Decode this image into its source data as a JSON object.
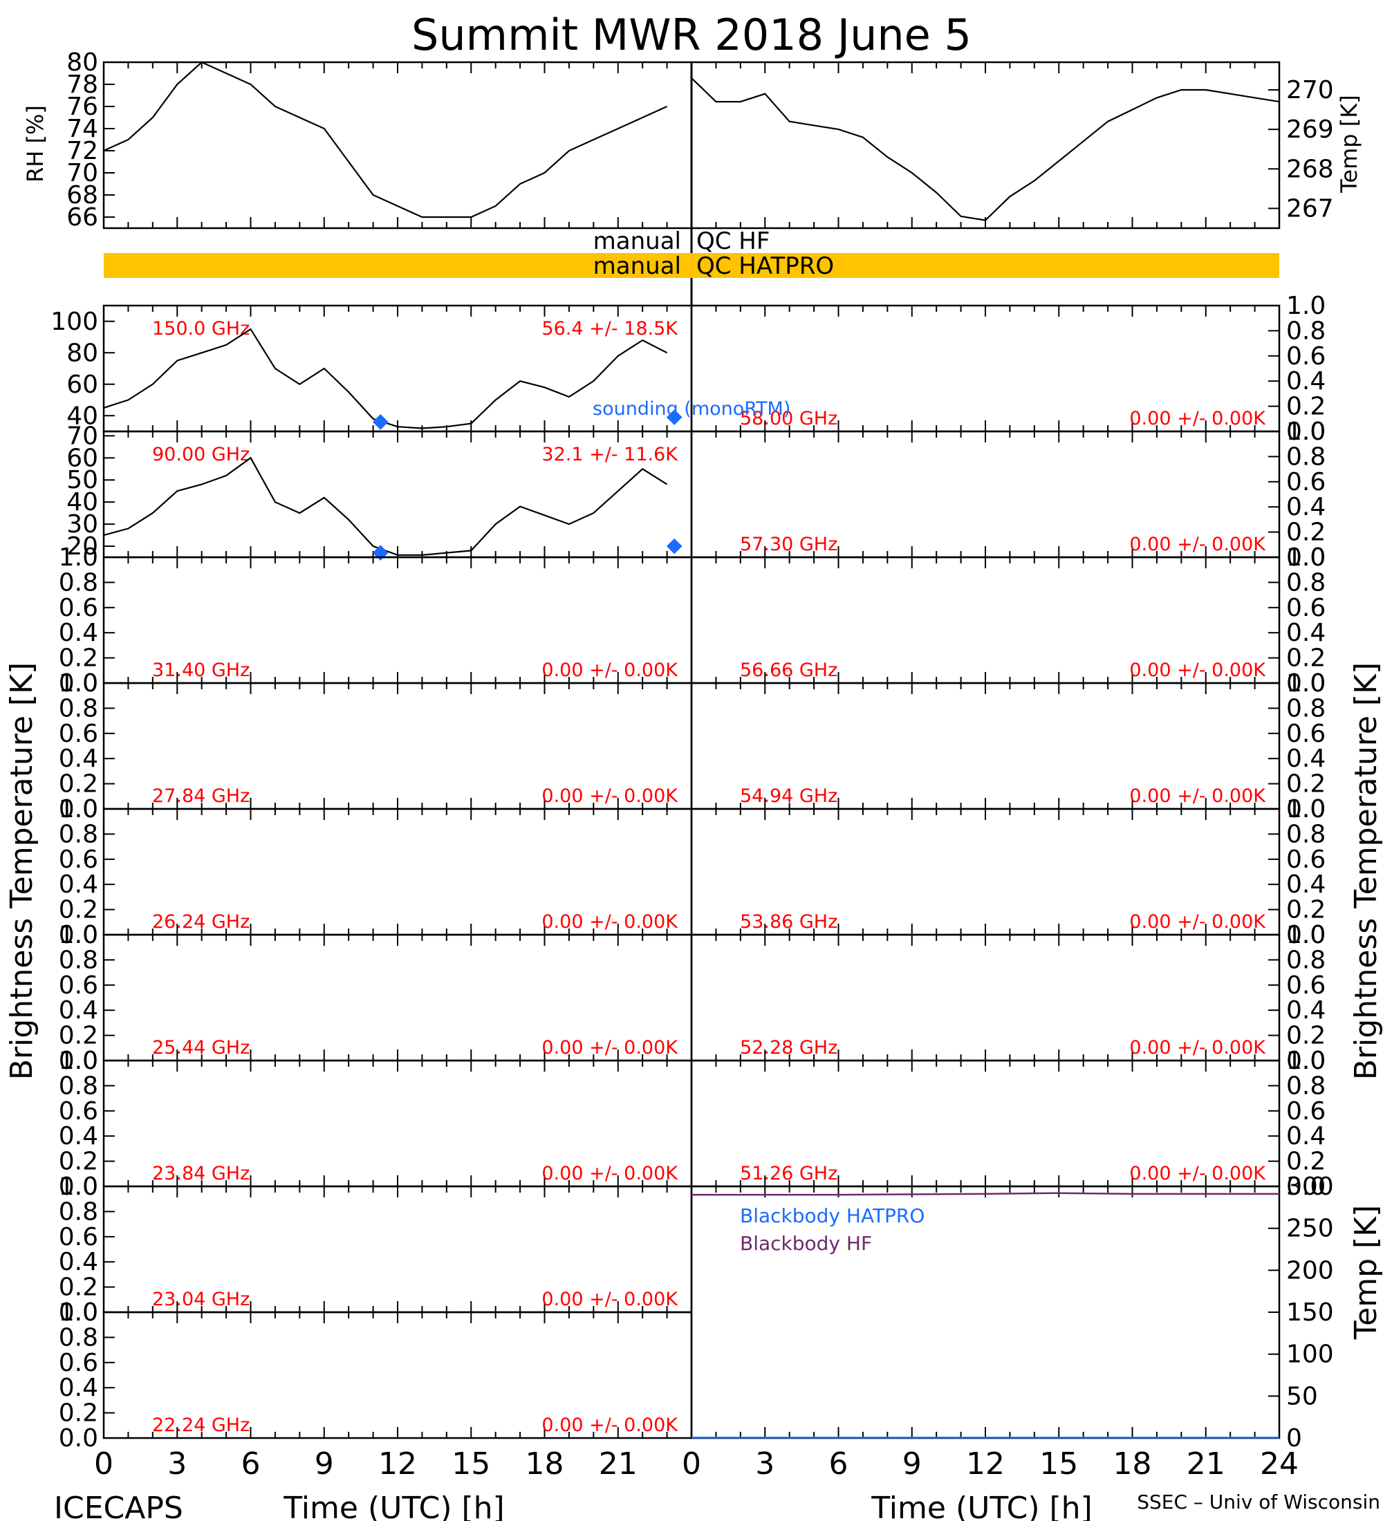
{
  "title": "Summit MWR 2018 June  5",
  "footer": {
    "left": "ICECAPS",
    "right": "SSEC – Univ of Wisconsin"
  },
  "colors": {
    "qc_bar": "#ffc300",
    "data": "#000000",
    "annotation": "#ff0000",
    "sounding": "#1a6bff",
    "bb_hatpro": "#1a6bff",
    "bb_hf": "#6b2a6b"
  },
  "time_axis": {
    "label": "Time (UTC) [h]",
    "ticks": [
      "0",
      "3",
      "6",
      "9",
      "12",
      "15",
      "18",
      "21",
      "24"
    ],
    "ticks_left": [
      "0",
      "3",
      "6",
      "9",
      "12",
      "15",
      "18",
      "21"
    ],
    "range": [
      0,
      24
    ]
  },
  "side_labels": {
    "bt_left": "Brightness Temperature [K]",
    "bt_right": "Brightness Temperature [K]",
    "bb_right": "Temp [K]"
  },
  "qc": {
    "row1": {
      "left": "manual",
      "right": "QC HF"
    },
    "row2": {
      "left": "manual",
      "right": "QC HATPRO"
    }
  },
  "chart_data": [
    {
      "id": "rh",
      "type": "line",
      "ylabel": "RH [%]",
      "ylim": [
        65,
        80
      ],
      "yticks": [
        "66",
        "68",
        "70",
        "72",
        "74",
        "76",
        "78",
        "80"
      ],
      "x": [
        0,
        1,
        2,
        3,
        4,
        5,
        6,
        7,
        8,
        9,
        10,
        11,
        12,
        13,
        14,
        15,
        16,
        17,
        18,
        19,
        20,
        21,
        22,
        23
      ],
      "values": [
        72,
        73,
        75,
        78,
        80,
        79,
        78,
        76,
        75,
        74,
        71,
        68,
        67,
        66,
        66,
        66,
        67,
        69,
        70,
        72,
        73,
        74,
        75,
        76
      ]
    },
    {
      "id": "temp",
      "type": "line",
      "ylabel": "Temp [K]",
      "ylim": [
        266.5,
        270.7
      ],
      "yticks": [
        "267",
        "268",
        "269",
        "270"
      ],
      "x": [
        0,
        1,
        2,
        3,
        4,
        5,
        6,
        7,
        8,
        9,
        10,
        11,
        12,
        13,
        14,
        15,
        16,
        17,
        18,
        19,
        20,
        21,
        22,
        23,
        24
      ],
      "values": [
        270.3,
        269.7,
        269.7,
        269.9,
        269.2,
        269.1,
        269.0,
        268.8,
        268.3,
        267.9,
        267.4,
        266.8,
        266.7,
        267.3,
        267.7,
        268.2,
        268.7,
        269.2,
        269.5,
        269.8,
        270.0,
        270.0,
        269.9,
        269.8,
        269.7
      ]
    },
    {
      "id": "150",
      "type": "line",
      "channel": "150.0 GHz",
      "stats": "56.4 +/-  18.5K",
      "ylim": [
        30,
        110
      ],
      "yticks": [
        "40",
        "60",
        "80",
        "100"
      ],
      "x": [
        0,
        1,
        2,
        3,
        4,
        5,
        6,
        7,
        8,
        9,
        10,
        11,
        12,
        13,
        14,
        15,
        16,
        17,
        18,
        19,
        20,
        21,
        22,
        23
      ],
      "values": [
        45,
        50,
        60,
        75,
        80,
        85,
        95,
        70,
        60,
        70,
        55,
        38,
        33,
        32,
        33,
        35,
        50,
        62,
        58,
        52,
        62,
        78,
        88,
        80
      ],
      "sounding": {
        "label": "sounding (monoRTM)",
        "x": [
          11.3,
          23.3
        ],
        "values": [
          36,
          39
        ]
      }
    },
    {
      "id": "90",
      "type": "line",
      "channel": "90.00 GHz",
      "stats": "32.1 +/-  11.6K",
      "ylim": [
        15,
        72
      ],
      "yticks": [
        "20",
        "30",
        "40",
        "50",
        "60",
        "70"
      ],
      "x": [
        0,
        1,
        2,
        3,
        4,
        5,
        6,
        7,
        8,
        9,
        10,
        11,
        12,
        13,
        14,
        15,
        16,
        17,
        18,
        19,
        20,
        21,
        22,
        23
      ],
      "values": [
        25,
        28,
        35,
        45,
        48,
        52,
        60,
        40,
        35,
        42,
        32,
        20,
        16,
        16,
        17,
        18,
        30,
        38,
        34,
        30,
        35,
        45,
        55,
        48
      ],
      "sounding": {
        "x": [
          11.3,
          23.3
        ],
        "values": [
          17,
          20
        ]
      }
    },
    {
      "id": "31",
      "channel": "31.40 GHz",
      "stats": "0.00 +/-  0.00K",
      "ylim": [
        0,
        1
      ],
      "yticks": [
        "0.0",
        "0.2",
        "0.4",
        "0.6",
        "0.8",
        "1.0"
      ]
    },
    {
      "id": "27",
      "channel": "27.84 GHz",
      "stats": "0.00 +/-  0.00K",
      "ylim": [
        0,
        1
      ],
      "yticks": [
        "0.0",
        "0.2",
        "0.4",
        "0.6",
        "0.8",
        "1.0"
      ]
    },
    {
      "id": "26",
      "channel": "26.24 GHz",
      "stats": "0.00 +/-  0.00K",
      "ylim": [
        0,
        1
      ],
      "yticks": [
        "0.0",
        "0.2",
        "0.4",
        "0.6",
        "0.8",
        "1.0"
      ]
    },
    {
      "id": "25",
      "channel": "25.44 GHz",
      "stats": "0.00 +/-  0.00K",
      "ylim": [
        0,
        1
      ],
      "yticks": [
        "0.0",
        "0.2",
        "0.4",
        "0.6",
        "0.8",
        "1.0"
      ]
    },
    {
      "id": "23a",
      "channel": "23.84 GHz",
      "stats": "0.00 +/-  0.00K",
      "ylim": [
        0,
        1
      ],
      "yticks": [
        "0.0",
        "0.2",
        "0.4",
        "0.6",
        "0.8",
        "1.0"
      ]
    },
    {
      "id": "23b",
      "channel": "23.04 GHz",
      "stats": "0.00 +/-  0.00K",
      "ylim": [
        0,
        1
      ],
      "yticks": [
        "0.0",
        "0.2",
        "0.4",
        "0.6",
        "0.8",
        "1.0"
      ]
    },
    {
      "id": "22",
      "channel": "22.24 GHz",
      "stats": "0.00 +/-  0.00K",
      "ylim": [
        0,
        1
      ],
      "yticks": [
        "0.0",
        "0.2",
        "0.4",
        "0.6",
        "0.8",
        "1.0"
      ]
    },
    {
      "id": "58",
      "channel": "58.00 GHz",
      "stats": "0.00 +/-  0.00K",
      "ylim": [
        0,
        1
      ],
      "yticks": [
        "0.0",
        "0.2",
        "0.4",
        "0.6",
        "0.8",
        "1.0"
      ]
    },
    {
      "id": "57",
      "channel": "57.30 GHz",
      "stats": "0.00 +/-  0.00K",
      "ylim": [
        0,
        1
      ],
      "yticks": [
        "0.0",
        "0.2",
        "0.4",
        "0.6",
        "0.8",
        "1.0"
      ]
    },
    {
      "id": "56",
      "channel": "56.66 GHz",
      "stats": "0.00 +/-  0.00K",
      "ylim": [
        0,
        1
      ],
      "yticks": [
        "0.0",
        "0.2",
        "0.4",
        "0.6",
        "0.8",
        "1.0"
      ]
    },
    {
      "id": "54",
      "channel": "54.94 GHz",
      "stats": "0.00 +/-  0.00K",
      "ylim": [
        0,
        1
      ],
      "yticks": [
        "0.0",
        "0.2",
        "0.4",
        "0.6",
        "0.8",
        "1.0"
      ]
    },
    {
      "id": "53",
      "channel": "53.86 GHz",
      "stats": "0.00 +/-  0.00K",
      "ylim": [
        0,
        1
      ],
      "yticks": [
        "0.0",
        "0.2",
        "0.4",
        "0.6",
        "0.8",
        "1.0"
      ]
    },
    {
      "id": "52",
      "channel": "52.28 GHz",
      "stats": "0.00 +/-  0.00K",
      "ylim": [
        0,
        1
      ],
      "yticks": [
        "0.0",
        "0.2",
        "0.4",
        "0.6",
        "0.8",
        "1.0"
      ]
    },
    {
      "id": "51",
      "channel": "51.26 GHz",
      "stats": "0.00 +/-  0.00K",
      "ylim": [
        0,
        1
      ],
      "yticks": [
        "0.0",
        "0.2",
        "0.4",
        "0.6",
        "0.8",
        "1.0"
      ]
    },
    {
      "id": "bb",
      "type": "line",
      "ylim": [
        0,
        300
      ],
      "yticks": [
        "0",
        "50",
        "100",
        "150",
        "200",
        "250",
        "300"
      ],
      "series": [
        {
          "name": "Blackbody HATPRO",
          "x": [
            0,
            24
          ],
          "values": [
            0.5,
            0.5
          ]
        },
        {
          "name": "Blackbody HF",
          "x": [
            0,
            6,
            12,
            15,
            18,
            24
          ],
          "values": [
            290,
            290,
            291,
            292,
            291,
            291
          ]
        }
      ]
    }
  ]
}
